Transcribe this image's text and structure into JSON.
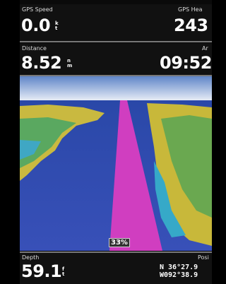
{
  "top_fields": [
    {
      "label": "GPS Speed",
      "value": "0.0",
      "unit": "kt"
    },
    {
      "label": "GPS Hea",
      "value": "243"
    }
  ],
  "mid_fields": [
    {
      "label": "Distance",
      "value": "8.52",
      "unit": "nm"
    },
    {
      "label": "Ar",
      "value": "09:52"
    }
  ],
  "scene": {
    "progress": "33%"
  },
  "bottom_fields": {
    "depth": {
      "label": "Depth",
      "value": "59.1",
      "unit": "ft"
    },
    "position": {
      "label": "Posi",
      "lat": "N 36°27.9",
      "lon": "W092°38.9"
    }
  }
}
